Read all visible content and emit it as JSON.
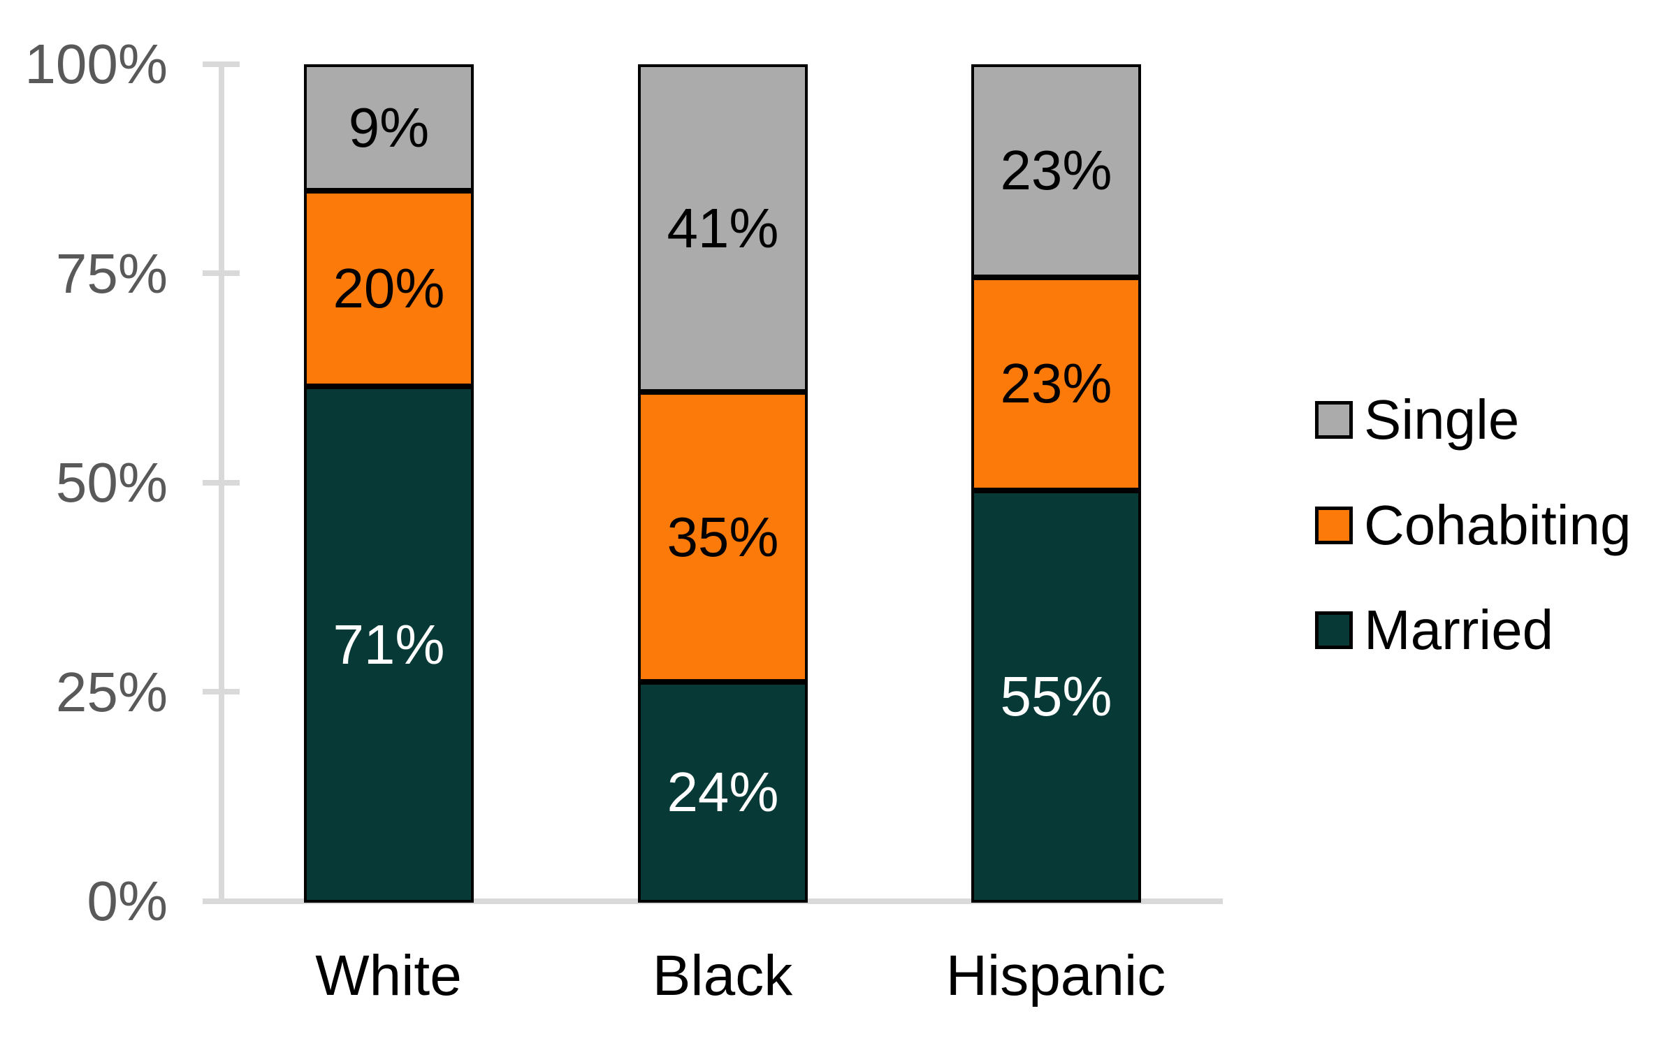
{
  "chart_data": {
    "type": "bar",
    "stacked": true,
    "orientation": "vertical",
    "unit": "%",
    "categories": [
      "White",
      "Black",
      "Hispanic"
    ],
    "series": [
      {
        "name": "Single",
        "color": "#ababab",
        "text_color": "#000000",
        "values": [
          9,
          41,
          23
        ],
        "labels": [
          "9%",
          "41%",
          "23%"
        ]
      },
      {
        "name": "Cohabiting",
        "color": "#fb7a09",
        "text_color": "#000000",
        "values": [
          20,
          35,
          23
        ],
        "labels": [
          "20%",
          "35%",
          "23%"
        ]
      },
      {
        "name": "Married",
        "color": "#073a37",
        "text_color": "#ffffff",
        "values": [
          71,
          24,
          55
        ],
        "labels": [
          "71%",
          "24%",
          "55%"
        ]
      }
    ],
    "y_axis": {
      "min": 0,
      "max": 100,
      "ticks": [
        "100%",
        "75%",
        "50%",
        "25%",
        "0%"
      ],
      "tick_label_color": "#595959",
      "axis_line_color": "#d9d9d9"
    },
    "legend": {
      "position": "right",
      "order": [
        "Single",
        "Cohabiting",
        "Married"
      ]
    },
    "title": "",
    "grid": false,
    "bar_outline_color": "#000000",
    "background_color": "#ffffff"
  }
}
